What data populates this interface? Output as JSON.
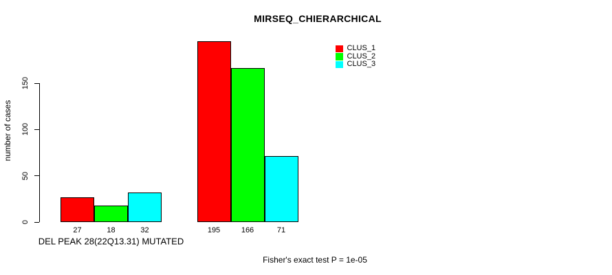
{
  "chart_data": {
    "type": "bar",
    "title": "MIRSEQ_CHIERARCHICAL",
    "ylabel": "number of cases",
    "xlabel": "",
    "ylim": [
      0,
      150
    ],
    "yticks": [
      0,
      50,
      100,
      150
    ],
    "grid": false,
    "legend_position": "top-right",
    "categories": [
      "DEL PEAK 28(22Q13.31) MUTATED",
      ""
    ],
    "series": [
      {
        "name": "CLUS_1",
        "color": "#ff0000",
        "values": [
          27,
          195
        ]
      },
      {
        "name": "CLUS_2",
        "color": "#00ff00",
        "values": [
          18,
          166
        ]
      },
      {
        "name": "CLUS_3",
        "color": "#00ffff",
        "values": [
          32,
          71
        ]
      }
    ],
    "bar_labels_shown": true,
    "footnote": "Fisher's exact test P = 1e-05",
    "colors": {
      "axis": "#000000",
      "text": "#000000",
      "background": "#ffffff"
    }
  }
}
